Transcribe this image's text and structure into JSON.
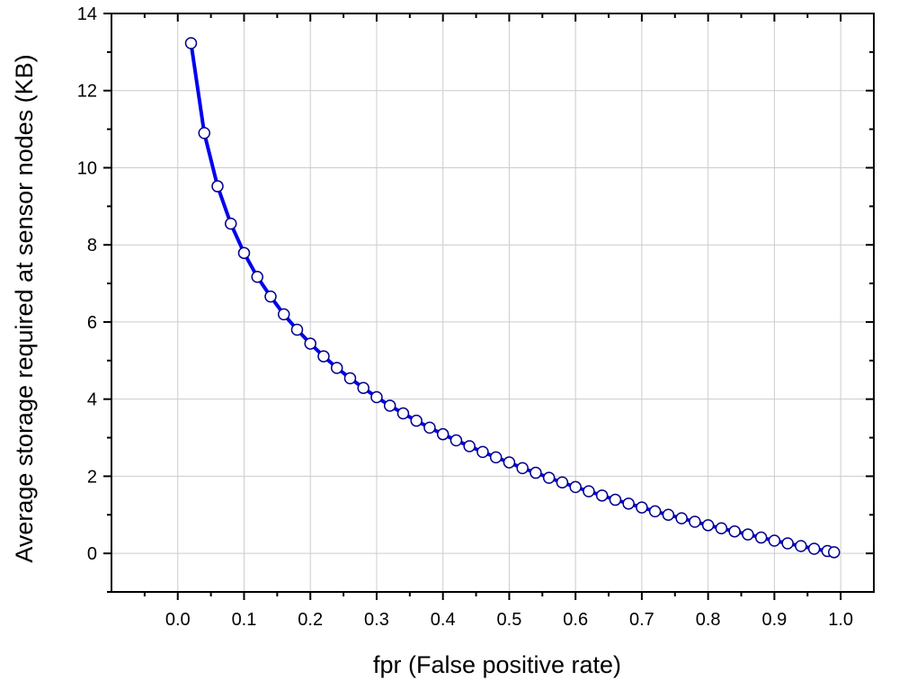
{
  "chart_data": {
    "type": "line",
    "xlabel": "fpr (False positive rate)",
    "ylabel": "Average storage required at sensor nodes (KB)",
    "xlim": [
      -0.1,
      1.05
    ],
    "ylim": [
      -1,
      14
    ],
    "x_ticks": [
      0.0,
      0.1,
      0.2,
      0.3,
      0.4,
      0.5,
      0.6,
      0.7,
      0.8,
      0.9,
      1.0
    ],
    "x_tick_labels": [
      "0.0",
      "0.1",
      "0.2",
      "0.3",
      "0.4",
      "0.5",
      "0.6",
      "0.7",
      "0.8",
      "0.9",
      "1.0"
    ],
    "y_ticks": [
      0,
      2,
      4,
      6,
      8,
      10,
      12,
      14
    ],
    "y_tick_labels": [
      "0",
      "2",
      "4",
      "6",
      "8",
      "10",
      "12",
      "14"
    ],
    "grid": true,
    "line_color": "#0000ee",
    "marker_edge_color": "#00008b",
    "marker_face_color": "#ffffff",
    "series": [
      {
        "x": [
          0.02,
          0.04,
          0.06,
          0.08,
          0.1,
          0.12,
          0.14,
          0.16,
          0.18,
          0.2,
          0.22,
          0.24,
          0.26,
          0.28,
          0.3,
          0.32,
          0.34,
          0.36,
          0.38,
          0.4,
          0.42,
          0.44,
          0.46,
          0.48,
          0.5,
          0.52,
          0.54,
          0.56,
          0.58,
          0.6,
          0.62,
          0.64,
          0.66,
          0.68,
          0.7,
          0.72,
          0.74,
          0.76,
          0.78,
          0.8,
          0.82,
          0.84,
          0.86,
          0.88,
          0.9,
          0.92,
          0.94,
          0.96,
          0.98,
          0.99
        ],
        "y": [
          13.23,
          10.9,
          9.52,
          8.55,
          7.79,
          7.17,
          6.66,
          6.2,
          5.8,
          5.44,
          5.11,
          4.81,
          4.54,
          4.29,
          4.05,
          3.83,
          3.63,
          3.44,
          3.26,
          3.09,
          2.93,
          2.78,
          2.63,
          2.49,
          2.36,
          2.21,
          2.09,
          1.96,
          1.84,
          1.72,
          1.61,
          1.5,
          1.39,
          1.29,
          1.19,
          1.09,
          1.0,
          0.91,
          0.82,
          0.73,
          0.65,
          0.57,
          0.49,
          0.41,
          0.33,
          0.26,
          0.19,
          0.12,
          0.06,
          0.03
        ]
      }
    ]
  }
}
